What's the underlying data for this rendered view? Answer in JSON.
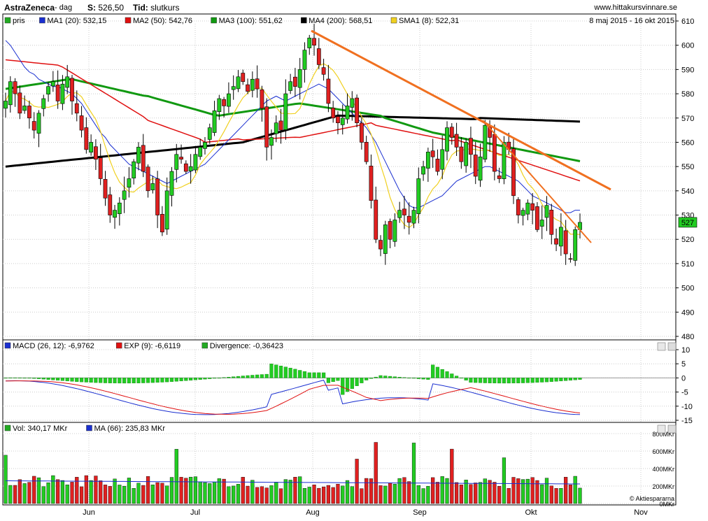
{
  "header": {
    "title": "AstraZeneca",
    "sub": "- dag",
    "s_label": "S:",
    "s_value": "526,50",
    "tid_label": "Tid:",
    "tid_value": "slutkurs",
    "site": "www.hittakursvinnare.se",
    "range": "8 maj 2015 - 16 okt 2015"
  },
  "legend_price": [
    {
      "label": "pris",
      "color": "#22aa22"
    },
    {
      "label": "MA1 (20): 532,15",
      "color": "#1a2fd0"
    },
    {
      "label": "MA2 (50): 542,76",
      "color": "#e01010"
    },
    {
      "label": "MA3 (100): 551,62",
      "color": "#119911"
    },
    {
      "label": "MA4 (200): 568,51",
      "color": "#000000"
    },
    {
      "label": "SMA1 (8): 522,31",
      "color": "#f0d020"
    }
  ],
  "legend_macd": [
    {
      "label": "MACD (26, 12): -6,9762",
      "color": "#1a2fd0"
    },
    {
      "label": "EXP (9): -6,6119",
      "color": "#e01010"
    },
    {
      "label": "Divergence: -0,36423",
      "color": "#22aa22"
    }
  ],
  "legend_vol": [
    {
      "label": "Vol: 340,17 MKr",
      "color": "#22aa22"
    },
    {
      "label": "MA (66): 235,83 MKr",
      "color": "#1a2fd0"
    }
  ],
  "current_price_label": "527",
  "watermark": "© Aktiespararna",
  "colors": {
    "up": "#22cc22",
    "down": "#e02020",
    "grid": "#cccccc",
    "trend": "#f07020"
  },
  "chart_data": [
    {
      "type": "candlestick",
      "name": "price",
      "ylim": [
        480,
        610
      ],
      "yticks": [
        480,
        490,
        500,
        510,
        520,
        530,
        540,
        550,
        560,
        570,
        580,
        590,
        600,
        610
      ],
      "xticks": [
        "Jun",
        "Jul",
        "Aug",
        "Sep",
        "Okt",
        "Nov"
      ],
      "candles_close": [
        577,
        585,
        580,
        572,
        575,
        570,
        565,
        572,
        578,
        583,
        585,
        577,
        584,
        587,
        577,
        572,
        565,
        557,
        560,
        553,
        545,
        537,
        530,
        532,
        535,
        540,
        545,
        552,
        558,
        548,
        540,
        543,
        530,
        523,
        540,
        548,
        555,
        553,
        548,
        550,
        555,
        558,
        560,
        566,
        573,
        578,
        575,
        580,
        583,
        587,
        585,
        581,
        586,
        582,
        574,
        558,
        562,
        568,
        565,
        580,
        585,
        583,
        590,
        598,
        603,
        600,
        592,
        588,
        576,
        570,
        568,
        570,
        575,
        578,
        568,
        560,
        552,
        536,
        520,
        516,
        526,
        520,
        528,
        532,
        530,
        527,
        532,
        545,
        550,
        556,
        554,
        548,
        557,
        566,
        562,
        558,
        552,
        560,
        555,
        546,
        554,
        567,
        562,
        548,
        545,
        560,
        557,
        538,
        530,
        532,
        535,
        532,
        524,
        528,
        534,
        522,
        518,
        525,
        514,
        512,
        524,
        527
      ],
      "ma20": [
        602,
        600,
        597,
        594,
        591,
        589,
        588,
        586,
        585,
        584,
        583,
        583,
        582,
        581,
        580,
        578,
        576,
        573,
        570,
        567,
        564,
        562,
        559,
        557,
        555,
        553,
        551,
        550,
        549,
        548,
        547,
        546,
        545,
        544,
        543,
        544,
        545,
        546,
        547,
        548,
        549,
        550,
        551,
        553,
        555,
        557,
        559,
        561,
        563,
        565,
        567,
        569,
        571,
        573,
        575,
        577,
        578,
        579,
        578,
        577,
        578,
        579,
        580,
        581,
        582,
        583,
        584,
        583,
        582,
        580,
        578,
        576,
        574,
        572,
        570,
        568,
        566,
        563,
        560,
        556,
        552,
        548,
        544,
        540,
        537,
        534,
        533,
        533,
        534,
        535,
        536,
        537,
        538,
        540,
        542,
        544,
        545,
        546,
        547,
        548,
        549,
        550,
        550,
        549,
        548,
        547,
        546,
        545,
        544,
        542,
        540,
        538,
        537,
        536,
        535,
        534,
        533,
        532,
        531,
        531,
        532,
        532
      ]
    },
    {
      "type": "bar+line",
      "name": "macd",
      "ylim": [
        -15,
        10
      ],
      "yticks": [
        10,
        5,
        0,
        -5,
        -10,
        -15
      ]
    },
    {
      "type": "bar+line",
      "name": "volume",
      "ylim": [
        0,
        800
      ],
      "yticks": [
        "800MKr",
        "600MKr",
        "400MKr",
        "200MKr",
        "0MKr"
      ]
    }
  ]
}
